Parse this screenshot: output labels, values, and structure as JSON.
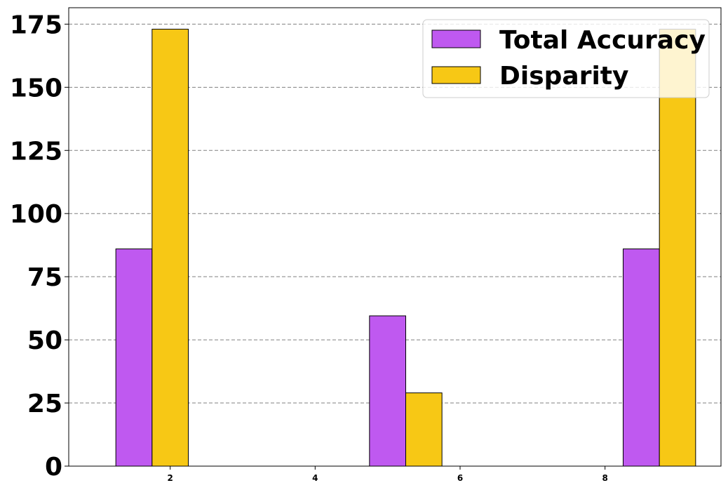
{
  "chart_data": {
    "type": "bar",
    "x": [
      1.75,
      5.25,
      8.75
    ],
    "bar_width": 0.5,
    "series": [
      {
        "name": "Total Accuracy",
        "color": "#bf59f0",
        "values": [
          86,
          59.5,
          86
        ]
      },
      {
        "name": "Disparity",
        "color": "#f7c815",
        "values": [
          173,
          29,
          173
        ]
      }
    ],
    "xticks": [
      2,
      4,
      6,
      8
    ],
    "yticks": [
      0,
      25,
      50,
      75,
      100,
      125,
      150,
      175
    ],
    "xlim": [
      0.6,
      9.6
    ],
    "ylim": [
      0,
      181.5
    ],
    "grid": {
      "axis": "y",
      "style": "dashed"
    },
    "legend": {
      "placement": "top-right"
    },
    "title": "",
    "xlabel": "",
    "ylabel": ""
  }
}
